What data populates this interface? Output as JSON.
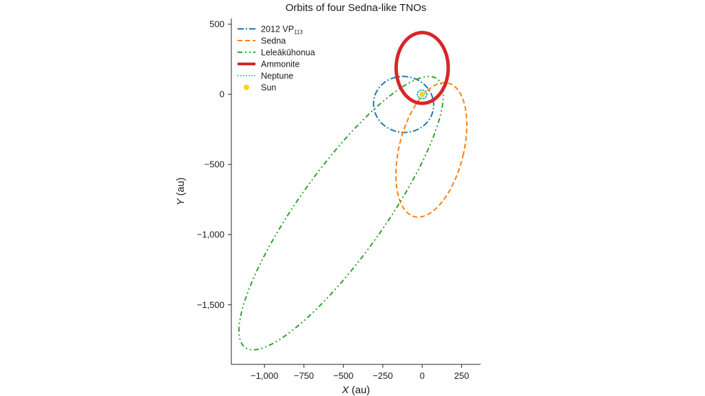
{
  "chart_data": {
    "type": "line",
    "title": "Orbits of four Sedna-like TNOs",
    "xlabel_var": "X",
    "xlabel_unit": " (au)",
    "ylabel_var": "Y",
    "ylabel_unit": " (au)",
    "xlim": [
      -1210,
      370
    ],
    "ylim": [
      -1925,
      540
    ],
    "xticks": [
      {
        "value": -1000,
        "label": "−1,000"
      },
      {
        "value": -750,
        "label": "−750"
      },
      {
        "value": -500,
        "label": "−500"
      },
      {
        "value": -250,
        "label": "−250"
      },
      {
        "value": 0,
        "label": "0"
      },
      {
        "value": 250,
        "label": "250"
      }
    ],
    "yticks": [
      {
        "value": 500,
        "label": "500"
      },
      {
        "value": 0,
        "label": "0"
      },
      {
        "value": -500,
        "label": "−500"
      },
      {
        "value": -1000,
        "label": "−1,000"
      },
      {
        "value": -1500,
        "label": "−1,500"
      }
    ],
    "series": [
      {
        "name": "2012 VP",
        "name_sub": "113",
        "color": "#1f77b4",
        "style": "dashdot",
        "width": 2,
        "orbit": {
          "center": [
            -118,
            -72
          ],
          "rx": 190,
          "ry": 200,
          "rotation_deg": 12
        }
      },
      {
        "name": "Sedna",
        "color": "#ff7f0e",
        "style": "dashed",
        "width": 2,
        "orbit": {
          "center": [
            58,
            -396
          ],
          "rx": 205,
          "ry": 488,
          "rotation_deg": -12
        }
      },
      {
        "name": "Leleākūhonua",
        "color": "#2ca02c",
        "style": "dashdotdot",
        "width": 2,
        "orbit": {
          "center": [
            -514,
            -847
          ],
          "rx": 283,
          "ry": 1135,
          "rotation_deg": -32
        }
      },
      {
        "name": "Ammonite",
        "color": "#d62728",
        "style": "solid",
        "width": 5,
        "orbit": {
          "center": 0,
          "center_y": 188,
          "rx": 165,
          "ry": 252,
          "rotation_deg": 0
        }
      },
      {
        "name": "Neptune",
        "color": "#17becf",
        "style": "dotted",
        "width": 2,
        "orbit": {
          "center": [
            0,
            0
          ],
          "rx": 30,
          "ry": 30,
          "rotation_deg": 0
        }
      }
    ],
    "sun": {
      "name": "Sun",
      "x": 0,
      "y": 0,
      "color": "#ffd21f"
    }
  }
}
